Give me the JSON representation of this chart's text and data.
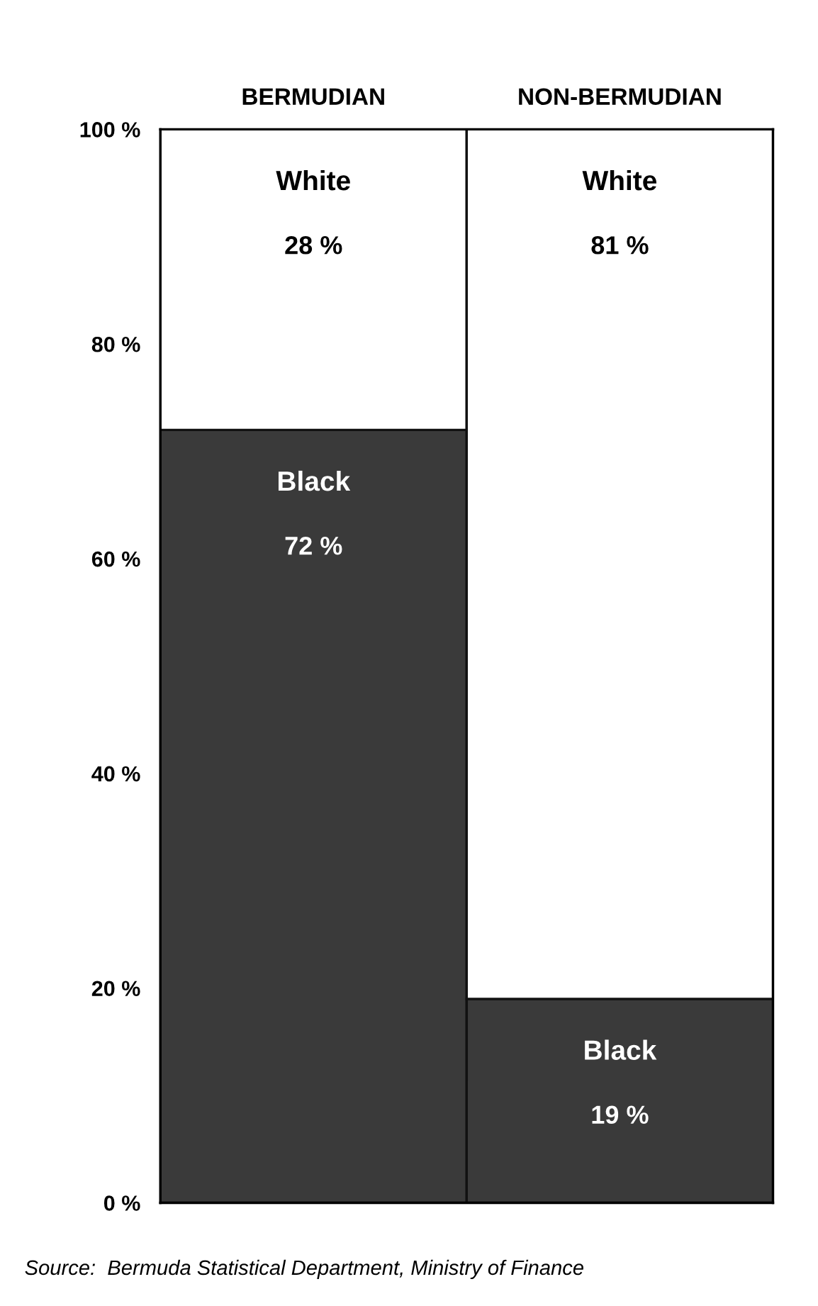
{
  "chart_data": {
    "type": "bar",
    "stacked": true,
    "categories": [
      "BERMUDIAN",
      "NON-BERMUDIAN"
    ],
    "series": [
      {
        "name": "Black",
        "color": "#3a3a3a",
        "values": [
          72,
          19
        ],
        "value_labels": [
          "72 %",
          "19 %"
        ]
      },
      {
        "name": "White",
        "color": "#ffffff",
        "values": [
          28,
          81
        ],
        "value_labels": [
          "28 %",
          "81 %"
        ]
      }
    ],
    "ylim": [
      0,
      100
    ],
    "yticks": [
      {
        "value": 0,
        "label": "0 %"
      },
      {
        "value": 20,
        "label": "20 %"
      },
      {
        "value": 40,
        "label": "40 %"
      },
      {
        "value": 60,
        "label": "60 %"
      },
      {
        "value": 80,
        "label": "80 %"
      },
      {
        "value": 100,
        "label": "100 %"
      }
    ],
    "grid": false,
    "legend": false,
    "annotations": [
      "Source:  Bermuda Statistical Department, Ministry of Finance"
    ]
  }
}
